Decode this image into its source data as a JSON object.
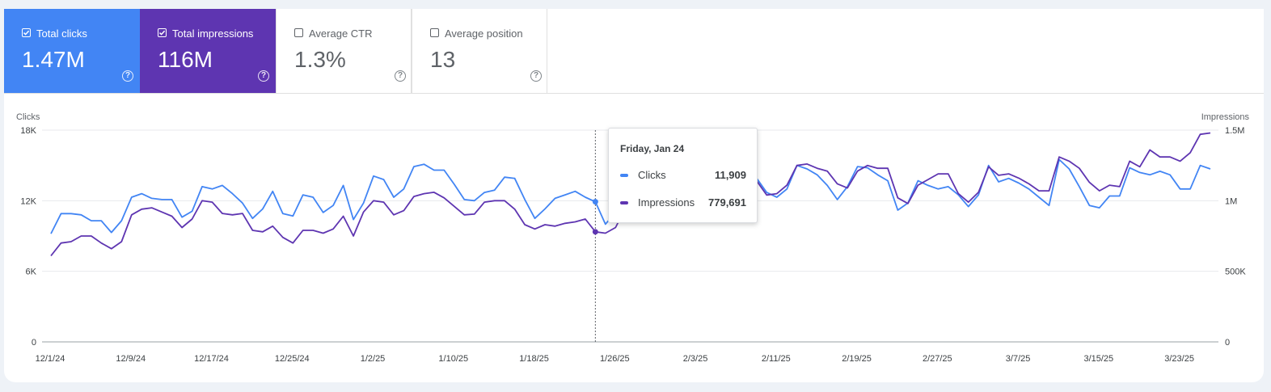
{
  "metrics": [
    {
      "label": "Total clicks",
      "value": "1.47M",
      "checked": true
    },
    {
      "label": "Total impressions",
      "value": "116M",
      "checked": true
    },
    {
      "label": "Average CTR",
      "value": "1.3%",
      "checked": false
    },
    {
      "label": "Average position",
      "value": "13",
      "checked": false
    }
  ],
  "help_glyph": "?",
  "colors": {
    "clicks": "#4285f4",
    "impressions": "#5e35b1"
  },
  "tooltip": {
    "date": "Friday, Jan 24",
    "rows": [
      {
        "name": "Clicks",
        "value": "11,909"
      },
      {
        "name": "Impressions",
        "value": "779,691"
      }
    ]
  },
  "chart_data": {
    "type": "line",
    "left_axis_title": "Clicks",
    "right_axis_title": "Impressions",
    "left_ticks": [
      "0",
      "6K",
      "12K",
      "18K"
    ],
    "right_ticks": [
      "0",
      "500K",
      "1M",
      "1.5M"
    ],
    "x_ticks": [
      "12/1/24",
      "12/9/24",
      "12/17/24",
      "12/25/24",
      "1/2/25",
      "1/10/25",
      "1/18/25",
      "1/26/25",
      "2/3/25",
      "2/11/25",
      "2/19/25",
      "2/27/25",
      "3/7/25",
      "3/15/25",
      "3/23/25"
    ],
    "y_left_range": [
      0,
      18000
    ],
    "y_right_range": [
      0,
      1500000
    ],
    "grid": true,
    "highlight_index": 54,
    "series": [
      {
        "name": "Clicks",
        "axis": "left",
        "values": [
          9200,
          10900,
          10900,
          10800,
          10300,
          10300,
          9300,
          10300,
          12300,
          12600,
          12200,
          12100,
          12100,
          10600,
          11100,
          13200,
          13000,
          13300,
          12600,
          11800,
          10500,
          11300,
          12800,
          10900,
          10700,
          12500,
          12300,
          11000,
          11600,
          13300,
          10400,
          11800,
          14100,
          13800,
          12300,
          13000,
          14900,
          15100,
          14600,
          14600,
          13400,
          12100,
          12000,
          12700,
          12900,
          14000,
          13900,
          12100,
          10500,
          11300,
          12200,
          12500,
          12800,
          12300,
          11909,
          10000,
          11000,
          12400,
          12800,
          13500,
          13000,
          14000,
          14400,
          14200,
          13500,
          12300,
          13100,
          15000,
          14800,
          14400,
          13900,
          12700,
          12300,
          13000,
          15000,
          14700,
          14200,
          13300,
          12100,
          13200,
          14900,
          14800,
          14200,
          13700,
          11200,
          11800,
          13700,
          13300,
          13000,
          13200,
          12500,
          11500,
          12500,
          15000,
          13600,
          13900,
          13500,
          13000,
          12300,
          11600,
          15500,
          14700,
          13200,
          11600,
          11400,
          12400,
          12400,
          14800,
          14400,
          14200,
          14500,
          14200,
          13000,
          13000,
          15000,
          14700
        ]
      },
      {
        "name": "Impressions",
        "axis": "right",
        "values": [
          610000,
          700000,
          710000,
          750000,
          750000,
          700000,
          660000,
          710000,
          900000,
          940000,
          950000,
          920000,
          890000,
          810000,
          870000,
          1000000,
          990000,
          910000,
          900000,
          910000,
          790000,
          780000,
          820000,
          740000,
          700000,
          790000,
          790000,
          770000,
          800000,
          890000,
          750000,
          920000,
          1000000,
          990000,
          900000,
          930000,
          1030000,
          1050000,
          1060000,
          1020000,
          960000,
          900000,
          905000,
          990000,
          1000000,
          1000000,
          940000,
          830000,
          800000,
          830000,
          820000,
          840000,
          850000,
          870000,
          779691,
          770000,
          810000,
          950000,
          1070000,
          1080000,
          1050000,
          1080000,
          1090000,
          1050000,
          1020000,
          1000000,
          1080000,
          1210000,
          1170000,
          1160000,
          1140000,
          1040000,
          1050000,
          1110000,
          1250000,
          1260000,
          1230000,
          1210000,
          1120000,
          1090000,
          1210000,
          1250000,
          1230000,
          1230000,
          1020000,
          980000,
          1110000,
          1150000,
          1190000,
          1190000,
          1050000,
          990000,
          1060000,
          1240000,
          1180000,
          1190000,
          1160000,
          1120000,
          1070000,
          1070000,
          1310000,
          1280000,
          1230000,
          1130000,
          1070000,
          1110000,
          1100000,
          1280000,
          1240000,
          1360000,
          1310000,
          1310000,
          1280000,
          1340000,
          1470000,
          1480000
        ]
      }
    ]
  }
}
